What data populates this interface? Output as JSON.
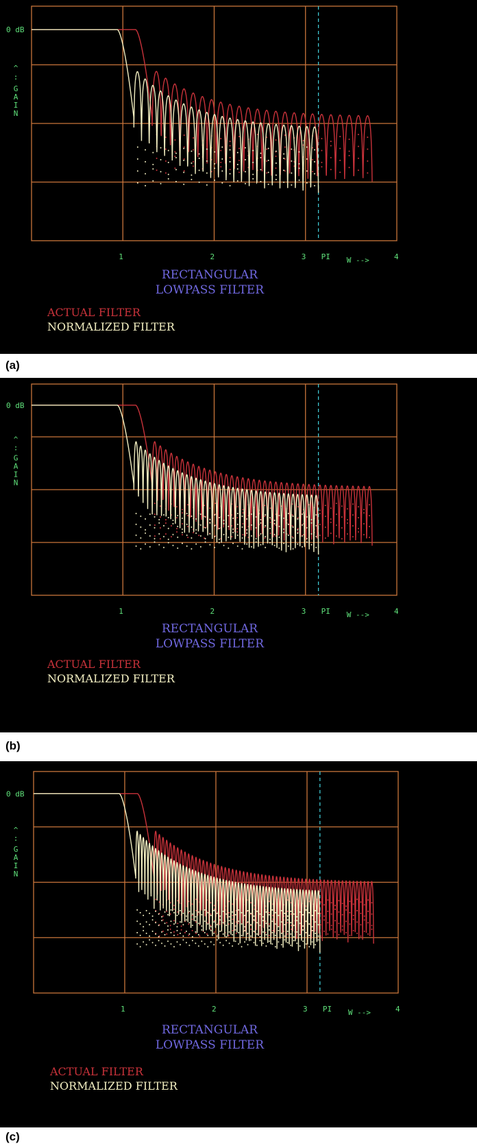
{
  "colors": {
    "background": "#000000",
    "grid": "#c9753b",
    "actual_filter": "#c8323a",
    "normalized_filter": "#f3efc2",
    "axis_text": "#5fe07a",
    "title_text": "#7068e0",
    "pi_marker": "#3fc6d0"
  },
  "labels": {
    "zero_db": "0 dB",
    "gain_arrow": "^",
    "gain_dots": ":",
    "gain": "GAIN",
    "pi": "PI",
    "w_axis": "W -->",
    "title_line1": "RECTANGULAR",
    "title_line2": "LOWPASS FILTER",
    "legend_actual": "ACTUAL FILTER",
    "legend_normalized": "NORMALIZED FILTER"
  },
  "chart_data": [
    {
      "panel": "(a)",
      "type": "line",
      "x_ticks": [
        "1",
        "2",
        "3",
        "4"
      ],
      "xlim": [
        0,
        4
      ],
      "pi_marker": 3.14159,
      "y_top_label": "0 dB",
      "series": [
        {
          "name": "ACTUAL FILTER",
          "cutoff": 1.2,
          "ripple_count": 24,
          "floor_level": 0.37
        },
        {
          "name": "NORMALIZED FILTER",
          "cutoff": 1.0,
          "ripple_count": 24,
          "floor_level": 0.46
        }
      ]
    },
    {
      "panel": "(b)",
      "type": "line",
      "x_ticks": [
        "1",
        "2",
        "3",
        "4"
      ],
      "xlim": [
        0,
        4
      ],
      "pi_marker": 3.14159,
      "y_top_label": "0 dB",
      "series": [
        {
          "name": "ACTUAL FILTER",
          "cutoff": 1.2,
          "ripple_count": 40,
          "floor_level": 0.4
        },
        {
          "name": "NORMALIZED FILTER",
          "cutoff": 1.0,
          "ripple_count": 40,
          "floor_level": 0.48
        }
      ]
    },
    {
      "panel": "(c)",
      "type": "line",
      "x_ticks": [
        "1",
        "2",
        "3",
        "4"
      ],
      "xlim": [
        0,
        4
      ],
      "pi_marker": 3.14159,
      "y_top_label": "0 dB",
      "series": [
        {
          "name": "ACTUAL FILTER",
          "cutoff": 1.2,
          "ripple_count": 60,
          "floor_level": 0.42
        },
        {
          "name": "NORMALIZED FILTER",
          "cutoff": 1.0,
          "ripple_count": 60,
          "floor_level": 0.5
        }
      ]
    }
  ],
  "panels": [
    {
      "letter": "(a)"
    },
    {
      "letter": "(b)"
    },
    {
      "letter": "(c)"
    }
  ]
}
